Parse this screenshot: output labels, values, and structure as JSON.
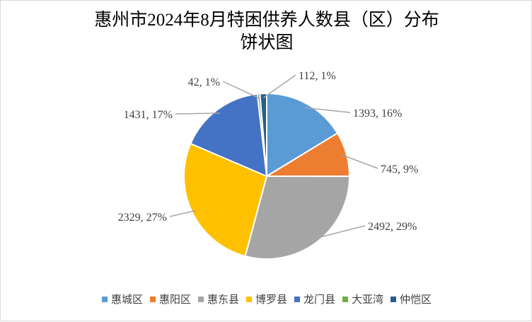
{
  "chart_data": {
    "type": "pie",
    "title": "惠州市2024年8月特困供养人数县（区）分布\n饼状图",
    "categories": [
      "惠城区",
      "惠阳区",
      "惠东县",
      "博罗县",
      "龙门县",
      "大亚湾",
      "仲恺区"
    ],
    "values": [
      1393,
      745,
      2492,
      2329,
      1431,
      42,
      112
    ],
    "percent_labels": [
      "16%",
      "9%",
      "29%",
      "27%",
      "17%",
      "1%",
      "1%"
    ],
    "data_labels": [
      "1393, 16%",
      "745, 9%",
      "2492, 29%",
      "2329, 27%",
      "1431, 17%",
      "42, 1%",
      "112, 1%"
    ],
    "colors": [
      "#5b9bd5",
      "#ed7d31",
      "#a5a5a5",
      "#ffc000",
      "#4472c4",
      "#70ad47",
      "#255e91"
    ],
    "start_angle": "12 o'clock, clockwise",
    "legend_position": "bottom"
  }
}
